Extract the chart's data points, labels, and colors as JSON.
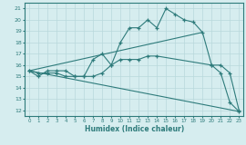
{
  "xlabel": "Humidex (Indice chaleur)",
  "bg_color": "#d6edef",
  "grid_color": "#b8d8db",
  "line_color": "#2e7b7b",
  "xlim": [
    -0.5,
    23.5
  ],
  "ylim": [
    11.5,
    21.5
  ],
  "xticks": [
    0,
    1,
    2,
    3,
    4,
    5,
    6,
    7,
    8,
    9,
    10,
    11,
    12,
    13,
    14,
    15,
    16,
    17,
    18,
    19,
    20,
    21,
    22,
    23
  ],
  "yticks": [
    12,
    13,
    14,
    15,
    16,
    17,
    18,
    19,
    20,
    21
  ],
  "line0_x": [
    0,
    1,
    2,
    3,
    4,
    5,
    6,
    7,
    8,
    9,
    10,
    11,
    12,
    13,
    14,
    15,
    16,
    17,
    18,
    19,
    20,
    21,
    22,
    23
  ],
  "line0_y": [
    15.5,
    15.0,
    15.5,
    15.5,
    15.5,
    15.0,
    15.0,
    16.5,
    17.0,
    16.0,
    18.0,
    19.3,
    19.3,
    20.0,
    19.3,
    21.0,
    20.5,
    20.0,
    19.8,
    18.9,
    16.0,
    15.3,
    12.7,
    11.9
  ],
  "line1_x": [
    0,
    1,
    2,
    3,
    4,
    5,
    6,
    7,
    8,
    9,
    10,
    11,
    12,
    13,
    14,
    20,
    21,
    22,
    23
  ],
  "line1_y": [
    15.5,
    15.3,
    15.3,
    15.3,
    15.0,
    15.0,
    15.0,
    15.0,
    15.3,
    16.0,
    16.5,
    16.5,
    16.5,
    16.8,
    16.8,
    16.0,
    16.0,
    15.3,
    12.0
  ],
  "line2_x": [
    0,
    19
  ],
  "line2_y": [
    15.5,
    18.9
  ],
  "line3_x": [
    0,
    23
  ],
  "line3_y": [
    15.5,
    11.9
  ]
}
